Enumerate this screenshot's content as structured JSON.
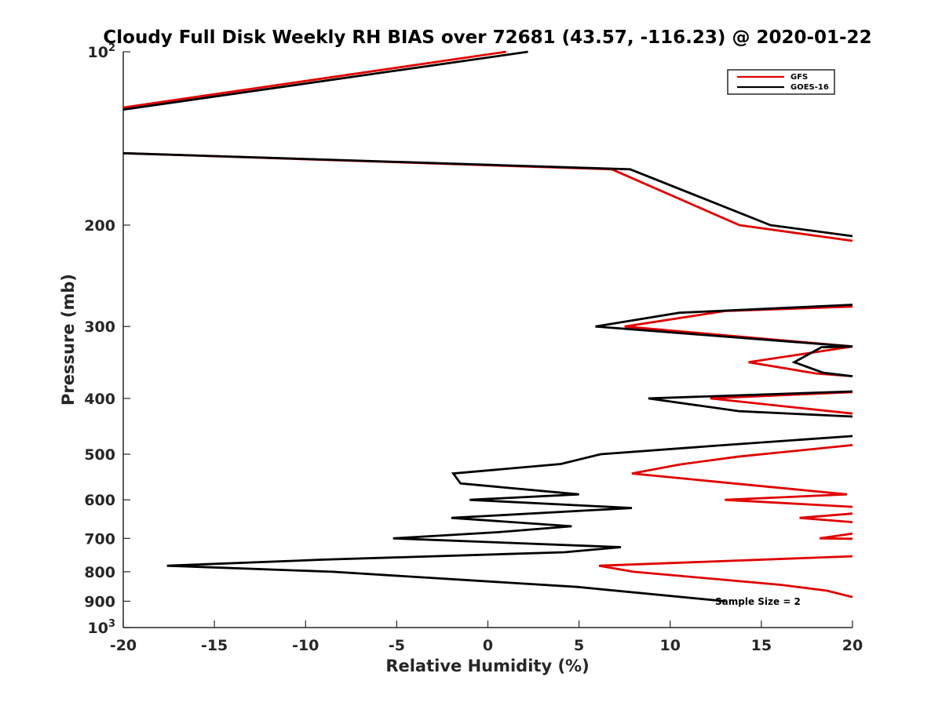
{
  "chart_data": {
    "type": "line",
    "title": "Cloudy Full Disk Weekly RH BIAS over 72681 (43.57, -116.23) @ 2020-01-22",
    "xlabel": "Relative Humidity (%)",
    "ylabel": "Pressure (mb)",
    "xlim": [
      -20,
      20
    ],
    "ylim": [
      100,
      1000
    ],
    "y_scale": "log",
    "y_reversed": true,
    "grid": false,
    "legend_position": "top-right",
    "x_ticks": [
      -20,
      -15,
      -10,
      -5,
      0,
      5,
      10,
      15,
      20
    ],
    "y_ticks": [
      {
        "value": 100,
        "label": "10",
        "sup": "2"
      },
      {
        "value": 200,
        "label": "200",
        "sup": ""
      },
      {
        "value": 300,
        "label": "300",
        "sup": ""
      },
      {
        "value": 400,
        "label": "400",
        "sup": ""
      },
      {
        "value": 500,
        "label": "500",
        "sup": ""
      },
      {
        "value": 600,
        "label": "600",
        "sup": ""
      },
      {
        "value": 700,
        "label": "700",
        "sup": ""
      },
      {
        "value": 800,
        "label": "800",
        "sup": ""
      },
      {
        "value": 900,
        "label": "900",
        "sup": ""
      },
      {
        "value": 1000,
        "label": "10",
        "sup": "3"
      }
    ],
    "series": [
      {
        "name": "GFS",
        "color": "#e00000",
        "segments": [
          [
            [
              1.0,
              100
            ],
            [
              -20.0,
              125
            ]
          ],
          [
            [
              -20.0,
              150
            ],
            [
              6.8,
              160
            ],
            [
              13.8,
              200
            ],
            [
              20.0,
              213
            ]
          ],
          [
            [
              20.0,
              277
            ],
            [
              13.0,
              282
            ],
            [
              7.5,
              300
            ],
            [
              20.0,
              325
            ]
          ],
          [
            [
              20.0,
              325
            ],
            [
              14.3,
              346
            ],
            [
              18.0,
              362
            ],
            [
              20.0,
              366
            ]
          ],
          [
            [
              20.0,
              390
            ],
            [
              12.2,
              400
            ],
            [
              20.0,
              425
            ]
          ],
          [
            [
              20.0,
              482
            ],
            [
              13.7,
              505
            ],
            [
              10.5,
              521
            ],
            [
              7.9,
              540
            ],
            [
              13.5,
              562
            ],
            [
              19.7,
              587
            ],
            [
              13.0,
              600
            ],
            [
              20.0,
              617
            ]
          ],
          [
            [
              20.0,
              634
            ],
            [
              17.1,
              645
            ],
            [
              20.0,
              656
            ]
          ],
          [
            [
              20.0,
              687
            ],
            [
              18.2,
              700
            ],
            [
              20.0,
              701
            ]
          ],
          [
            [
              20.0,
              752
            ],
            [
              6.1,
              781
            ],
            [
              8.0,
              800
            ],
            [
              16.1,
              843
            ],
            [
              18.6,
              863
            ],
            [
              20.0,
              885
            ]
          ]
        ]
      },
      {
        "name": "GOES-16",
        "color": "#000000",
        "segments": [
          [
            [
              2.2,
              100
            ],
            [
              -20.0,
              126
            ]
          ],
          [
            [
              -20.0,
              150
            ],
            [
              7.8,
              160
            ],
            [
              15.5,
              200
            ],
            [
              20.0,
              209
            ]
          ],
          [
            [
              20.0,
              275
            ],
            [
              10.5,
              284
            ],
            [
              5.9,
              300
            ],
            [
              20.0,
              325
            ]
          ],
          [
            [
              20.0,
              325
            ],
            [
              18.3,
              326
            ],
            [
              16.8,
              346
            ],
            [
              18.4,
              361
            ],
            [
              20.0,
              366
            ]
          ],
          [
            [
              20.0,
              389
            ],
            [
              8.8,
              400
            ],
            [
              13.8,
              421
            ],
            [
              20.0,
              430
            ]
          ],
          [
            [
              20.0,
              465
            ],
            [
              12.6,
              483
            ],
            [
              6.2,
              500
            ],
            [
              4.0,
              520
            ],
            [
              -1.9,
              540
            ],
            [
              -1.5,
              562
            ],
            [
              5.0,
              587
            ],
            [
              -1.0,
              600
            ],
            [
              7.9,
              620
            ],
            [
              -2.0,
              645
            ],
            [
              4.6,
              667
            ],
            [
              0.5,
              683
            ],
            [
              -5.2,
              700
            ],
            [
              7.3,
              725
            ],
            [
              4.2,
              740
            ],
            [
              -9.0,
              762
            ],
            [
              -17.6,
              781
            ],
            [
              -8.5,
              800
            ],
            [
              4.9,
              850
            ],
            [
              13.0,
              900
            ]
          ]
        ]
      }
    ],
    "annotation": "Sample Size = 2"
  }
}
